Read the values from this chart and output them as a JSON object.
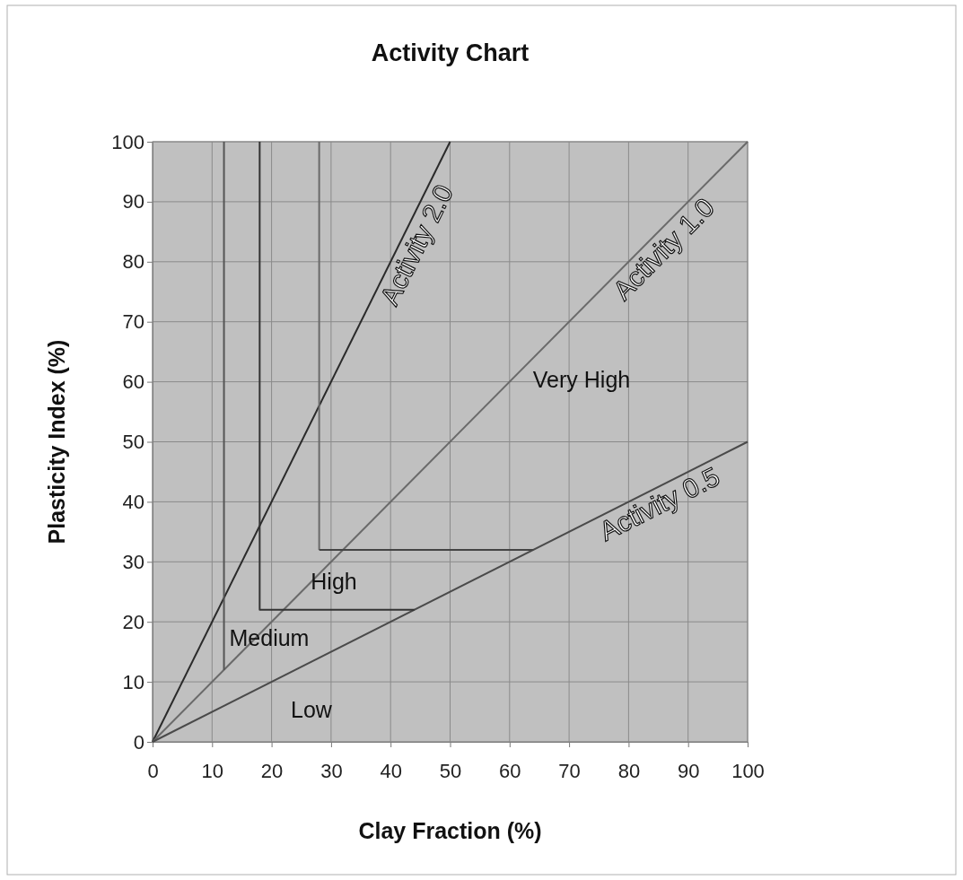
{
  "chart_data": {
    "type": "line",
    "title": "Activity Chart",
    "xlabel": "Clay Fraction (%)",
    "ylabel": "Plasticity Index (%)",
    "xlim": [
      0,
      100
    ],
    "ylim": [
      0,
      100
    ],
    "xticks": [
      0,
      10,
      20,
      30,
      40,
      50,
      60,
      70,
      80,
      90,
      100
    ],
    "yticks": [
      0,
      10,
      20,
      30,
      40,
      50,
      60,
      70,
      80,
      90,
      100
    ],
    "grid": true,
    "marker": "none",
    "line_style": "solid",
    "series": [
      {
        "name": "Activity 2.0",
        "color": "#2a2a2a",
        "x": [
          0,
          50
        ],
        "values": [
          0,
          100
        ]
      },
      {
        "name": "Activity 1.0",
        "color": "#6a6a6a",
        "x": [
          0,
          100
        ],
        "values": [
          0,
          100
        ]
      },
      {
        "name": "Activity 0.5",
        "color": "#4a4a4a",
        "x": [
          0,
          100
        ],
        "values": [
          0,
          50
        ]
      },
      {
        "color": "#555555",
        "x": [
          12,
          12
        ],
        "values": [
          12,
          100
        ]
      },
      {
        "color": "#333333",
        "x": [
          18,
          18,
          44
        ],
        "values": [
          100,
          22,
          22
        ]
      },
      {
        "color": "#6a6a6a",
        "x": [
          28,
          28
        ],
        "values": [
          100,
          32
        ]
      },
      {
        "color": "#444444",
        "x": [
          28,
          64
        ],
        "values": [
          32,
          32
        ]
      }
    ],
    "annotations": [
      "Very High",
      "High",
      "Medium",
      "Low"
    ]
  }
}
